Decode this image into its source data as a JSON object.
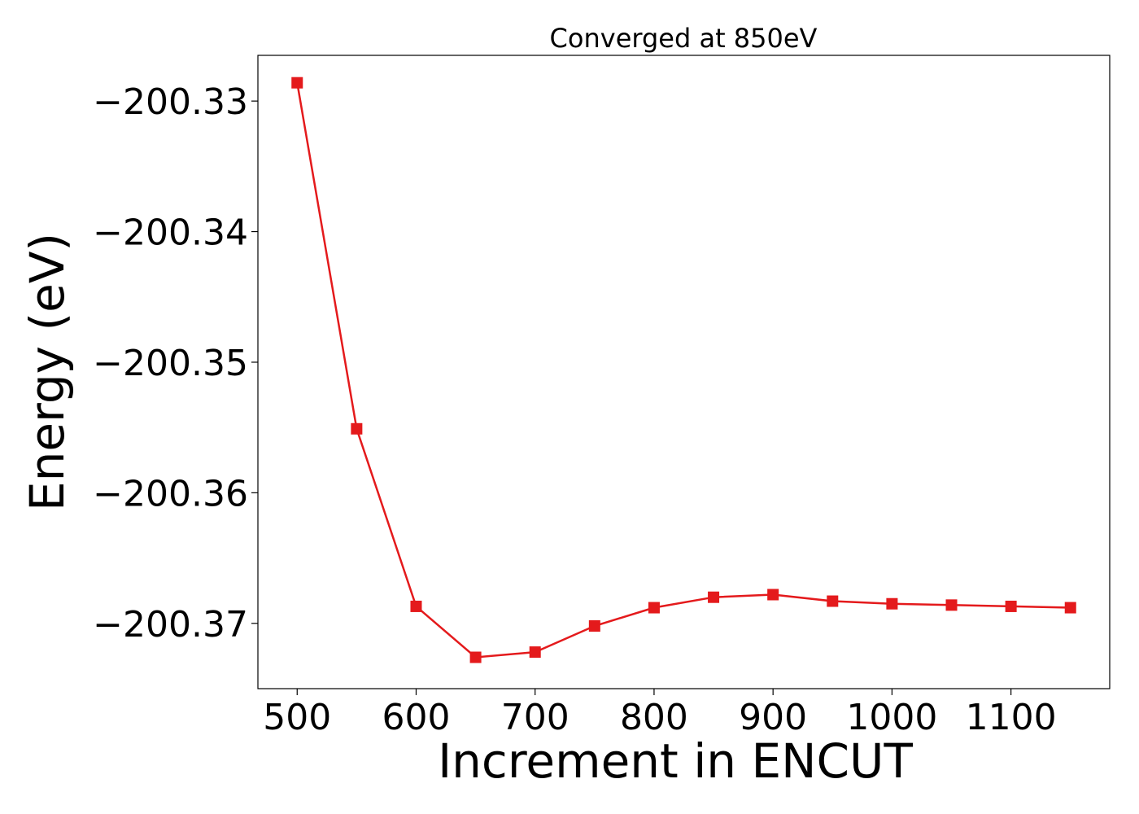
{
  "chart_data": {
    "type": "line",
    "title": "Converged at 850eV",
    "xlabel": "Increment in ENCUT",
    "ylabel": "Energy (eV)",
    "x": [
      500,
      550,
      600,
      650,
      700,
      750,
      800,
      850,
      900,
      950,
      1000,
      1050,
      1100,
      1150
    ],
    "series": [
      {
        "values": [
          -200.3286,
          -200.3551,
          -200.3687,
          -200.3726,
          -200.3722,
          -200.3702,
          -200.3688,
          -200.368,
          -200.3678,
          -200.3683,
          -200.3685,
          -200.3686,
          -200.3687,
          -200.3688
        ],
        "color": "#e41a1c",
        "marker": "square"
      }
    ],
    "xlim": [
      467,
      1183
    ],
    "ylim": [
      -200.375,
      -200.3265
    ],
    "xticks": [
      500,
      600,
      700,
      800,
      900,
      1000,
      1100
    ],
    "xtick_labels": [
      "500",
      "600",
      "700",
      "800",
      "900",
      "1000",
      "1100"
    ],
    "yticks": [
      -200.33,
      -200.34,
      -200.35,
      -200.36,
      -200.37
    ],
    "ytick_labels": [
      "−200.33",
      "−200.34",
      "−200.35",
      "−200.36",
      "−200.37"
    ],
    "grid": false,
    "legend": "none"
  }
}
